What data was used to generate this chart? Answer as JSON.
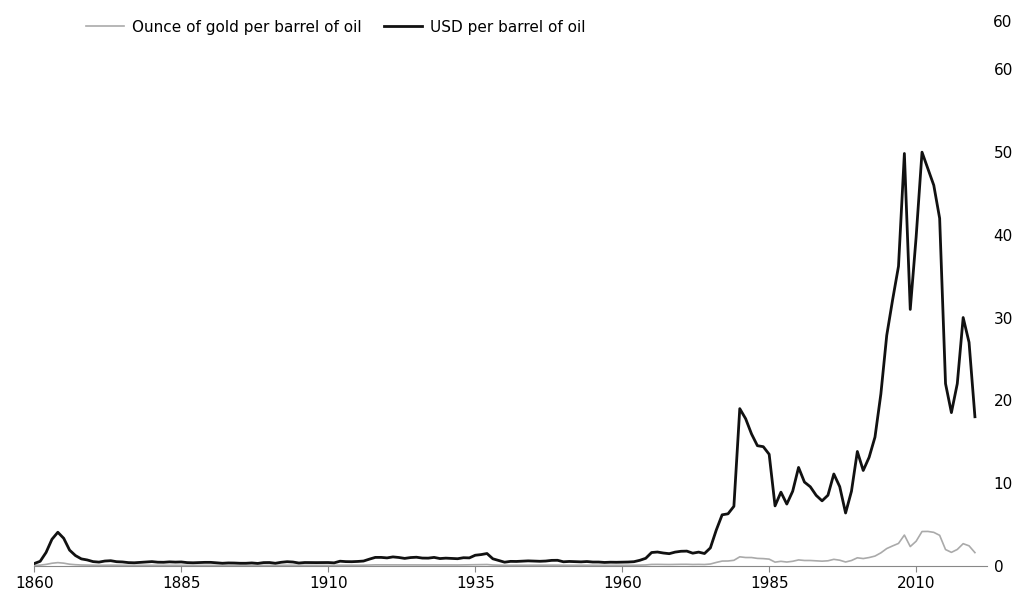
{
  "title": "",
  "legend_gold": "Ounce of gold per barrel of oil",
  "legend_usd": "USD per barrel of oil",
  "gold_color": "#aaaaaa",
  "usd_color": "#111111",
  "background_color": "#ffffff",
  "ylim": [
    0,
    60
  ],
  "xlim": [
    1860,
    2022
  ],
  "xticks": [
    1860,
    1885,
    1910,
    1935,
    1960,
    1985,
    2010
  ],
  "yticks_right": [
    0,
    10,
    20,
    30,
    40,
    50,
    60
  ],
  "figsize": [
    10.28,
    6.06
  ],
  "dpi": 100,
  "years": [
    1860,
    1861,
    1862,
    1863,
    1864,
    1865,
    1866,
    1867,
    1868,
    1869,
    1870,
    1871,
    1872,
    1873,
    1874,
    1875,
    1876,
    1877,
    1878,
    1879,
    1880,
    1881,
    1882,
    1883,
    1884,
    1885,
    1886,
    1887,
    1888,
    1889,
    1890,
    1891,
    1892,
    1893,
    1894,
    1895,
    1896,
    1897,
    1898,
    1899,
    1900,
    1901,
    1902,
    1903,
    1904,
    1905,
    1906,
    1907,
    1908,
    1909,
    1910,
    1911,
    1912,
    1913,
    1914,
    1915,
    1916,
    1917,
    1918,
    1919,
    1920,
    1921,
    1922,
    1923,
    1924,
    1925,
    1926,
    1927,
    1928,
    1929,
    1930,
    1931,
    1932,
    1933,
    1934,
    1935,
    1936,
    1937,
    1938,
    1939,
    1940,
    1941,
    1942,
    1943,
    1944,
    1945,
    1946,
    1947,
    1948,
    1949,
    1950,
    1951,
    1952,
    1953,
    1954,
    1955,
    1956,
    1957,
    1958,
    1959,
    1960,
    1961,
    1962,
    1963,
    1964,
    1965,
    1966,
    1967,
    1968,
    1969,
    1970,
    1971,
    1972,
    1973,
    1974,
    1975,
    1976,
    1977,
    1978,
    1979,
    1980,
    1981,
    1982,
    1983,
    1984,
    1985,
    1986,
    1987,
    1988,
    1989,
    1990,
    1991,
    1992,
    1993,
    1994,
    1995,
    1996,
    1997,
    1998,
    1999,
    2000,
    2001,
    2002,
    2003,
    2004,
    2005,
    2006,
    2007,
    2008,
    2009,
    2010,
    2011,
    2012,
    2013,
    2014,
    2015,
    2016,
    2017,
    2018,
    2019,
    2020
  ],
  "usd_values": [
    0.25,
    0.52,
    1.59,
    3.18,
    4.03,
    3.3,
    1.87,
    1.21,
    0.81,
    0.68,
    0.48,
    0.42,
    0.55,
    0.59,
    0.47,
    0.44,
    0.36,
    0.34,
    0.39,
    0.43,
    0.48,
    0.41,
    0.4,
    0.45,
    0.42,
    0.44,
    0.36,
    0.34,
    0.37,
    0.39,
    0.39,
    0.34,
    0.28,
    0.32,
    0.31,
    0.28,
    0.28,
    0.32,
    0.26,
    0.36,
    0.37,
    0.28,
    0.4,
    0.47,
    0.43,
    0.31,
    0.37,
    0.36,
    0.36,
    0.36,
    0.37,
    0.33,
    0.53,
    0.48,
    0.47,
    0.5,
    0.55,
    0.78,
    0.99,
    0.99,
    0.93,
    1.05,
    0.98,
    0.87,
    0.97,
    1.01,
    0.91,
    0.9,
    0.99,
    0.85,
    0.9,
    0.86,
    0.83,
    0.95,
    0.93,
    1.25,
    1.33,
    1.46,
    0.82,
    0.61,
    0.41,
    0.51,
    0.5,
    0.53,
    0.57,
    0.54,
    0.52,
    0.55,
    0.63,
    0.64,
    0.46,
    0.5,
    0.48,
    0.45,
    0.49,
    0.43,
    0.43,
    0.38,
    0.41,
    0.4,
    0.41,
    0.43,
    0.47,
    0.64,
    0.88,
    1.58,
    1.64,
    1.52,
    1.44,
    1.63,
    1.73,
    1.75,
    1.5,
    1.63,
    1.46,
    2.14,
    4.29,
    6.14,
    6.26,
    7.17,
    18.98,
    17.76,
    15.92,
    14.5,
    14.38,
    13.46,
    7.22,
    8.88,
    7.44,
    8.99,
    11.87,
    10.1,
    9.53,
    8.49,
    7.83,
    8.51,
    11.08,
    9.55,
    6.36,
    8.99,
    13.8,
    11.5,
    13.09,
    15.54,
    20.75,
    27.85,
    32.15,
    36.2,
    49.84,
    30.98,
    39.74,
    50.0,
    48.0,
    46.0,
    42.0,
    22.0,
    18.5,
    22.0,
    30.0,
    27.0,
    18.0
  ],
  "gold_values": [
    0.025,
    0.052,
    0.145,
    0.282,
    0.358,
    0.293,
    0.166,
    0.107,
    0.072,
    0.06,
    0.043,
    0.037,
    0.049,
    0.052,
    0.041,
    0.039,
    0.032,
    0.03,
    0.035,
    0.038,
    0.042,
    0.036,
    0.035,
    0.04,
    0.037,
    0.039,
    0.032,
    0.03,
    0.033,
    0.034,
    0.034,
    0.03,
    0.025,
    0.028,
    0.027,
    0.025,
    0.025,
    0.028,
    0.023,
    0.032,
    0.032,
    0.025,
    0.036,
    0.042,
    0.038,
    0.028,
    0.032,
    0.032,
    0.032,
    0.032,
    0.032,
    0.029,
    0.047,
    0.042,
    0.042,
    0.044,
    0.049,
    0.069,
    0.088,
    0.088,
    0.083,
    0.093,
    0.086,
    0.077,
    0.086,
    0.09,
    0.081,
    0.08,
    0.088,
    0.075,
    0.08,
    0.076,
    0.073,
    0.084,
    0.083,
    0.111,
    0.118,
    0.13,
    0.072,
    0.054,
    0.036,
    0.045,
    0.044,
    0.047,
    0.05,
    0.048,
    0.046,
    0.049,
    0.056,
    0.056,
    0.041,
    0.044,
    0.042,
    0.04,
    0.043,
    0.038,
    0.038,
    0.033,
    0.036,
    0.036,
    0.036,
    0.038,
    0.041,
    0.057,
    0.078,
    0.14,
    0.145,
    0.135,
    0.127,
    0.144,
    0.153,
    0.155,
    0.133,
    0.144,
    0.13,
    0.189,
    0.38,
    0.545,
    0.556,
    0.637,
    1.06,
    0.976,
    0.973,
    0.87,
    0.843,
    0.78,
    0.418,
    0.514,
    0.43,
    0.519,
    0.685,
    0.617,
    0.615,
    0.578,
    0.534,
    0.58,
    0.755,
    0.65,
    0.434,
    0.614,
    0.94,
    0.85,
    0.972,
    1.15,
    1.54,
    2.06,
    2.38,
    2.68,
    3.693,
    2.3,
    2.946,
    4.12,
    4.13,
    4.02,
    3.66,
    1.94,
    1.6,
    1.95,
    2.65,
    2.39,
    1.57
  ]
}
